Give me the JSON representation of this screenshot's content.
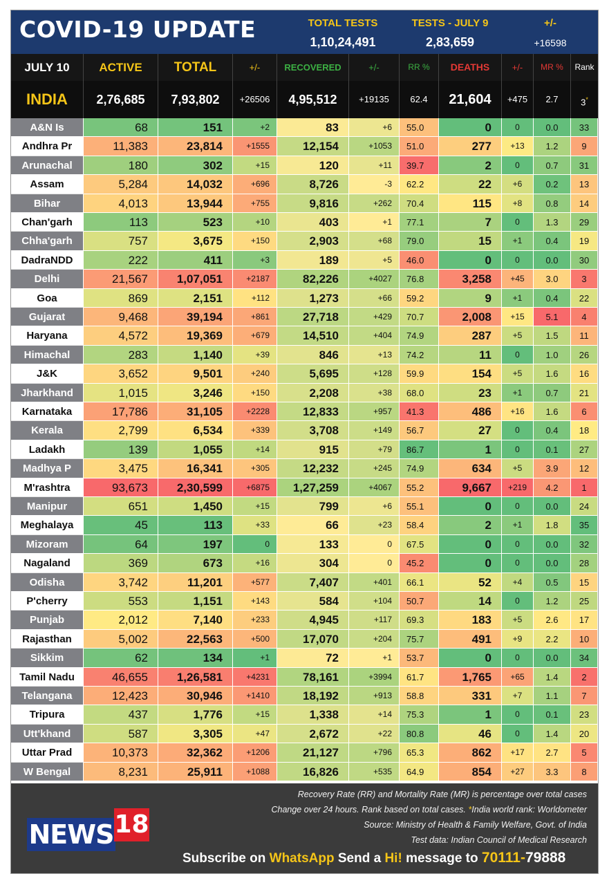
{
  "header": {
    "title": "COVID-19 UPDATE",
    "total_tests_label": "TOTAL TESTS",
    "total_tests_value": "1,10,24,491",
    "tests_day_label": "TESTS - JULY  9",
    "tests_day_value": "2,83,659",
    "change_label": "+/-",
    "change_value": "+16598"
  },
  "columns": {
    "date": "JULY 10",
    "active": "ACTIVE",
    "total": "TOTAL",
    "total_change": "+/-",
    "recovered": "RECOVERED",
    "recovered_change": "+/-",
    "rr": "RR %",
    "deaths": "DEATHS",
    "deaths_change": "+/-",
    "mr": "MR %",
    "rank": "Rank"
  },
  "india": {
    "name": "INDIA",
    "active": "2,76,685",
    "total": "7,93,802",
    "total_change": "+26506",
    "recovered": "4,95,512",
    "recovered_change": "+19135",
    "rr": "62.4",
    "deaths": "21,604",
    "deaths_change": "+475",
    "mr": "2.7",
    "rank": "3",
    "rank_mark": "*"
  },
  "states": [
    {
      "name": "A&N Is",
      "active": "68",
      "total": "151",
      "tchg": "+2",
      "rec": "83",
      "rchg": "+6",
      "rr": "55.0",
      "deaths": "0",
      "dchg": "0",
      "mr": "0.0",
      "rank": "33"
    },
    {
      "name": "Andhra Pr",
      "active": "11,383",
      "total": "23,814",
      "tchg": "+1555",
      "rec": "12,154",
      "rchg": "+1053",
      "rr": "51.0",
      "deaths": "277",
      "dchg": "+13",
      "mr": "1.2",
      "rank": "9"
    },
    {
      "name": "Arunachal",
      "active": "180",
      "total": "302",
      "tchg": "+15",
      "rec": "120",
      "rchg": "+11",
      "rr": "39.7",
      "deaths": "2",
      "dchg": "0",
      "mr": "0.7",
      "rank": "31"
    },
    {
      "name": "Assam",
      "active": "5,284",
      "total": "14,032",
      "tchg": "+696",
      "rec": "8,726",
      "rchg": "-3",
      "rr": "62.2",
      "deaths": "22",
      "dchg": "+6",
      "mr": "0.2",
      "rank": "13"
    },
    {
      "name": "Bihar",
      "active": "4,013",
      "total": "13,944",
      "tchg": "+755",
      "rec": "9,816",
      "rchg": "+262",
      "rr": "70.4",
      "deaths": "115",
      "dchg": "+8",
      "mr": "0.8",
      "rank": "14"
    },
    {
      "name": "Chan'garh",
      "active": "113",
      "total": "523",
      "tchg": "+10",
      "rec": "403",
      "rchg": "+1",
      "rr": "77.1",
      "deaths": "7",
      "dchg": "0",
      "mr": "1.3",
      "rank": "29"
    },
    {
      "name": "Chha'garh",
      "active": "757",
      "total": "3,675",
      "tchg": "+150",
      "rec": "2,903",
      "rchg": "+68",
      "rr": "79.0",
      "deaths": "15",
      "dchg": "+1",
      "mr": "0.4",
      "rank": "19"
    },
    {
      "name": "DadraNDD",
      "active": "222",
      "total": "411",
      "tchg": "+3",
      "rec": "189",
      "rchg": "+5",
      "rr": "46.0",
      "deaths": "0",
      "dchg": "0",
      "mr": "0.0",
      "rank": "30"
    },
    {
      "name": "Delhi",
      "active": "21,567",
      "total": "1,07,051",
      "tchg": "+2187",
      "rec": "82,226",
      "rchg": "+4027",
      "rr": "76.8",
      "deaths": "3,258",
      "dchg": "+45",
      "mr": "3.0",
      "rank": "3"
    },
    {
      "name": "Goa",
      "active": "869",
      "total": "2,151",
      "tchg": "+112",
      "rec": "1,273",
      "rchg": "+66",
      "rr": "59.2",
      "deaths": "9",
      "dchg": "+1",
      "mr": "0.4",
      "rank": "22"
    },
    {
      "name": "Gujarat",
      "active": "9,468",
      "total": "39,194",
      "tchg": "+861",
      "rec": "27,718",
      "rchg": "+429",
      "rr": "70.7",
      "deaths": "2,008",
      "dchg": "+15",
      "mr": "5.1",
      "rank": "4"
    },
    {
      "name": "Haryana",
      "active": "4,572",
      "total": "19,369",
      "tchg": "+679",
      "rec": "14,510",
      "rchg": "+404",
      "rr": "74.9",
      "deaths": "287",
      "dchg": "+5",
      "mr": "1.5",
      "rank": "11"
    },
    {
      "name": "Himachal",
      "active": "283",
      "total": "1,140",
      "tchg": "+39",
      "rec": "846",
      "rchg": "+13",
      "rr": "74.2",
      "deaths": "11",
      "dchg": "0",
      "mr": "1.0",
      "rank": "26"
    },
    {
      "name": "J&K",
      "active": "3,652",
      "total": "9,501",
      "tchg": "+240",
      "rec": "5,695",
      "rchg": "+128",
      "rr": "59.9",
      "deaths": "154",
      "dchg": "+5",
      "mr": "1.6",
      "rank": "16"
    },
    {
      "name": "Jharkhand",
      "active": "1,015",
      "total": "3,246",
      "tchg": "+150",
      "rec": "2,208",
      "rchg": "+38",
      "rr": "68.0",
      "deaths": "23",
      "dchg": "+1",
      "mr": "0.7",
      "rank": "21"
    },
    {
      "name": "Karnataka",
      "active": "17,786",
      "total": "31,105",
      "tchg": "+2228",
      "rec": "12,833",
      "rchg": "+957",
      "rr": "41.3",
      "deaths": "486",
      "dchg": "+16",
      "mr": "1.6",
      "rank": "6"
    },
    {
      "name": "Kerala",
      "active": "2,799",
      "total": "6,534",
      "tchg": "+339",
      "rec": "3,708",
      "rchg": "+149",
      "rr": "56.7",
      "deaths": "27",
      "dchg": "0",
      "mr": "0.4",
      "rank": "18"
    },
    {
      "name": "Ladakh",
      "active": "139",
      "total": "1,055",
      "tchg": "+14",
      "rec": "915",
      "rchg": "+79",
      "rr": "86.7",
      "deaths": "1",
      "dchg": "0",
      "mr": "0.1",
      "rank": "27"
    },
    {
      "name": "Madhya P",
      "active": "3,475",
      "total": "16,341",
      "tchg": "+305",
      "rec": "12,232",
      "rchg": "+245",
      "rr": "74.9",
      "deaths": "634",
      "dchg": "+5",
      "mr": "3.9",
      "rank": "12"
    },
    {
      "name": "M'rashtra",
      "active": "93,673",
      "total": "2,30,599",
      "tchg": "+6875",
      "rec": "1,27,259",
      "rchg": "+4067",
      "rr": "55.2",
      "deaths": "9,667",
      "dchg": "+219",
      "mr": "4.2",
      "rank": "1"
    },
    {
      "name": "Manipur",
      "active": "651",
      "total": "1,450",
      "tchg": "+15",
      "rec": "799",
      "rchg": "+6",
      "rr": "55.1",
      "deaths": "0",
      "dchg": "0",
      "mr": "0.0",
      "rank": "24"
    },
    {
      "name": "Meghalaya",
      "active": "45",
      "total": "113",
      "tchg": "+33",
      "rec": "66",
      "rchg": "+23",
      "rr": "58.4",
      "deaths": "2",
      "dchg": "+1",
      "mr": "1.8",
      "rank": "35"
    },
    {
      "name": "Mizoram",
      "active": "64",
      "total": "197",
      "tchg": "0",
      "rec": "133",
      "rchg": "0",
      "rr": "67.5",
      "deaths": "0",
      "dchg": "0",
      "mr": "0.0",
      "rank": "32"
    },
    {
      "name": "Nagaland",
      "active": "369",
      "total": "673",
      "tchg": "+16",
      "rec": "304",
      "rchg": "0",
      "rr": "45.2",
      "deaths": "0",
      "dchg": "0",
      "mr": "0.0",
      "rank": "28"
    },
    {
      "name": "Odisha",
      "active": "3,742",
      "total": "11,201",
      "tchg": "+577",
      "rec": "7,407",
      "rchg": "+401",
      "rr": "66.1",
      "deaths": "52",
      "dchg": "+4",
      "mr": "0.5",
      "rank": "15"
    },
    {
      "name": "P'cherry",
      "active": "553",
      "total": "1,151",
      "tchg": "+143",
      "rec": "584",
      "rchg": "+104",
      "rr": "50.7",
      "deaths": "14",
      "dchg": "0",
      "mr": "1.2",
      "rank": "25"
    },
    {
      "name": "Punjab",
      "active": "2,012",
      "total": "7,140",
      "tchg": "+233",
      "rec": "4,945",
      "rchg": "+117",
      "rr": "69.3",
      "deaths": "183",
      "dchg": "+5",
      "mr": "2.6",
      "rank": "17"
    },
    {
      "name": "Rajasthan",
      "active": "5,002",
      "total": "22,563",
      "tchg": "+500",
      "rec": "17,070",
      "rchg": "+204",
      "rr": "75.7",
      "deaths": "491",
      "dchg": "+9",
      "mr": "2.2",
      "rank": "10"
    },
    {
      "name": "Sikkim",
      "active": "62",
      "total": "134",
      "tchg": "+1",
      "rec": "72",
      "rchg": "+1",
      "rr": "53.7",
      "deaths": "0",
      "dchg": "0",
      "mr": "0.0",
      "rank": "34"
    },
    {
      "name": "Tamil Nadu",
      "active": "46,655",
      "total": "1,26,581",
      "tchg": "+4231",
      "rec": "78,161",
      "rchg": "+3994",
      "rr": "61.7",
      "deaths": "1,765",
      "dchg": "+65",
      "mr": "1.4",
      "rank": "2"
    },
    {
      "name": "Telangana",
      "active": "12,423",
      "total": "30,946",
      "tchg": "+1410",
      "rec": "18,192",
      "rchg": "+913",
      "rr": "58.8",
      "deaths": "331",
      "dchg": "+7",
      "mr": "1.1",
      "rank": "7"
    },
    {
      "name": "Tripura",
      "active": "437",
      "total": "1,776",
      "tchg": "+15",
      "rec": "1,338",
      "rchg": "+14",
      "rr": "75.3",
      "deaths": "1",
      "dchg": "0",
      "mr": "0.1",
      "rank": "23"
    },
    {
      "name": "Utt'khand",
      "active": "587",
      "total": "3,305",
      "tchg": "+47",
      "rec": "2,672",
      "rchg": "+22",
      "rr": "80.8",
      "deaths": "46",
      "dchg": "0",
      "mr": "1.4",
      "rank": "20"
    },
    {
      "name": "Uttar Prad",
      "active": "10,373",
      "total": "32,362",
      "tchg": "+1206",
      "rec": "21,127",
      "rchg": "+796",
      "rr": "65.3",
      "deaths": "862",
      "dchg": "+17",
      "mr": "2.7",
      "rank": "5"
    },
    {
      "name": "W Bengal",
      "active": "8,231",
      "total": "25,911",
      "tchg": "+1088",
      "rec": "16,826",
      "rchg": "+535",
      "rr": "64.9",
      "deaths": "854",
      "dchg": "+27",
      "mr": "3.3",
      "rank": "8"
    }
  ],
  "footer": {
    "note1": "Recovery Rate (RR) and Mortality Rate (MR) is percentage over total cases",
    "note2_a": "Change over 24 hours. Rank based on total cases.",
    "note2_ast": "*",
    "note2_b": "India world rank: Worldometer",
    "note3": "Source: Ministry of Health & Family Welfare, Govt. of India",
    "note4": "Test data: Indian Council of Medical Research",
    "logo_news": "NEWS",
    "logo_num": "18",
    "sub_1": "Subscribe on",
    "sub_whatsapp": "WhatsApp",
    "sub_2": "Send a",
    "sub_hi": "Hi!",
    "sub_3": "message to",
    "sub_num_a": "70111-",
    "sub_num_b": "79888"
  },
  "colors": {
    "header_bg": "#1d3a6e",
    "accent_yellow": "#f5c518",
    "recovered_green": "#3cb043",
    "deaths_red": "#e53935",
    "footer_bg": "#3b3b3b",
    "state_grey": "#7f8085"
  }
}
